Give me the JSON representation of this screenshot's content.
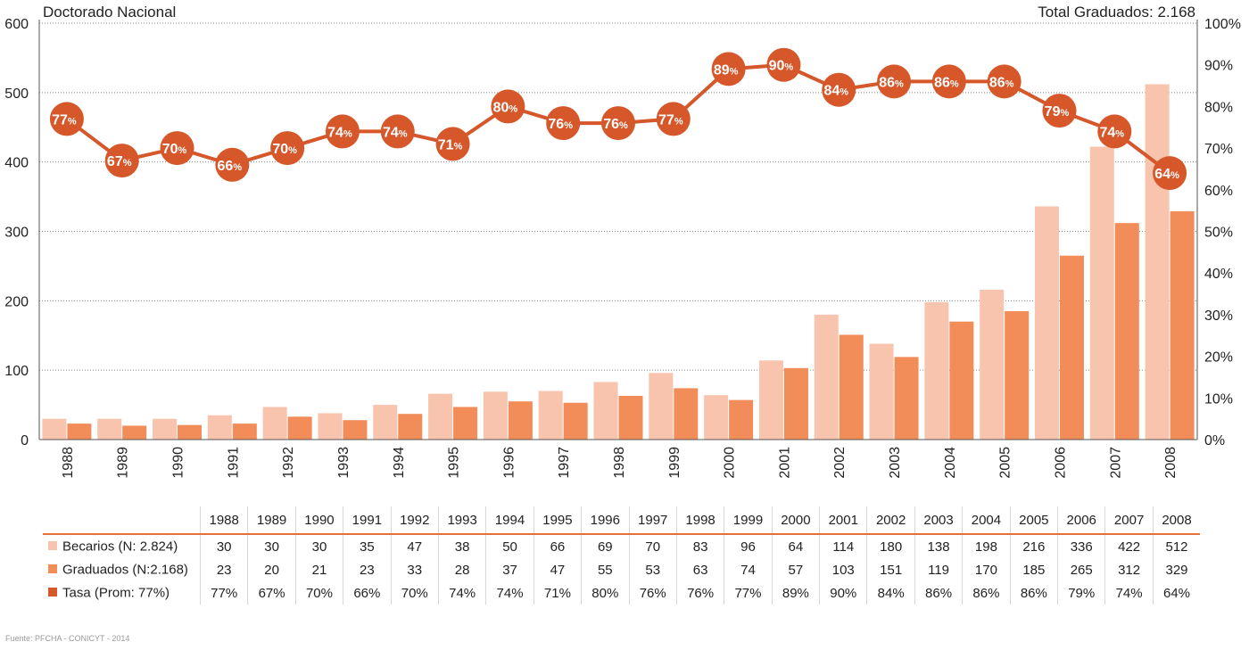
{
  "title": "Doctorado Nacional",
  "total_label": "Total Graduados: 2.168",
  "source": "Fuente: PFCHA - CONICYT - 2014",
  "colors": {
    "becarios": "#f9c4ad",
    "graduados": "#f28c58",
    "tasa": "#d5572a",
    "grid": "#888888",
    "table_rule": "#e4713a"
  },
  "chart_data": {
    "type": "bar",
    "categories": [
      "1988",
      "1989",
      "1990",
      "1991",
      "1992",
      "1993",
      "1994",
      "1995",
      "1996",
      "1997",
      "1998",
      "1999",
      "2000",
      "2001",
      "2002",
      "2003",
      "2004",
      "2005",
      "2006",
      "2007",
      "2008"
    ],
    "series": [
      {
        "name": "Becarios (N: 2.824)",
        "type": "bar",
        "axis": "left",
        "values": [
          30,
          30,
          30,
          35,
          47,
          38,
          50,
          66,
          69,
          70,
          83,
          96,
          64,
          114,
          180,
          138,
          198,
          216,
          336,
          422,
          512
        ]
      },
      {
        "name": "Graduados (N:2.168)",
        "type": "bar",
        "axis": "left",
        "values": [
          23,
          20,
          21,
          23,
          33,
          28,
          37,
          47,
          55,
          53,
          63,
          74,
          57,
          103,
          151,
          119,
          170,
          185,
          265,
          312,
          329
        ]
      },
      {
        "name": "Tasa (Prom: 77%)",
        "type": "line",
        "axis": "right",
        "values": [
          77,
          67,
          70,
          66,
          70,
          74,
          74,
          71,
          80,
          76,
          76,
          77,
          89,
          90,
          84,
          86,
          86,
          86,
          79,
          74,
          64
        ]
      }
    ],
    "ylim_left": [
      0,
      600
    ],
    "yticks_left": [
      "0",
      "100",
      "200",
      "300",
      "400",
      "500",
      "600"
    ],
    "ylim_right": [
      0,
      100
    ],
    "yticks_right": [
      "0%",
      "10%",
      "20%",
      "30%",
      "40%",
      "50%",
      "60%",
      "70%",
      "80%",
      "90%",
      "100%"
    ],
    "grid": true,
    "table": {
      "rows": [
        {
          "label": "Becarios (N: 2.824)",
          "values": [
            "30",
            "30",
            "30",
            "35",
            "47",
            "38",
            "50",
            "66",
            "69",
            "70",
            "83",
            "96",
            "64",
            "114",
            "180",
            "138",
            "198",
            "216",
            "336",
            "422",
            "512"
          ]
        },
        {
          "label": "Graduados (N:2.168)",
          "values": [
            "23",
            "20",
            "21",
            "23",
            "33",
            "28",
            "37",
            "47",
            "55",
            "53",
            "63",
            "74",
            "57",
            "103",
            "151",
            "119",
            "170",
            "185",
            "265",
            "312",
            "329"
          ]
        },
        {
          "label": "Tasa (Prom: 77%)",
          "values": [
            "77%",
            "67%",
            "70%",
            "66%",
            "70%",
            "74%",
            "74%",
            "71%",
            "80%",
            "76%",
            "76%",
            "77%",
            "89%",
            "90%",
            "84%",
            "86%",
            "86%",
            "86%",
            "79%",
            "74%",
            "64%"
          ]
        }
      ]
    }
  }
}
